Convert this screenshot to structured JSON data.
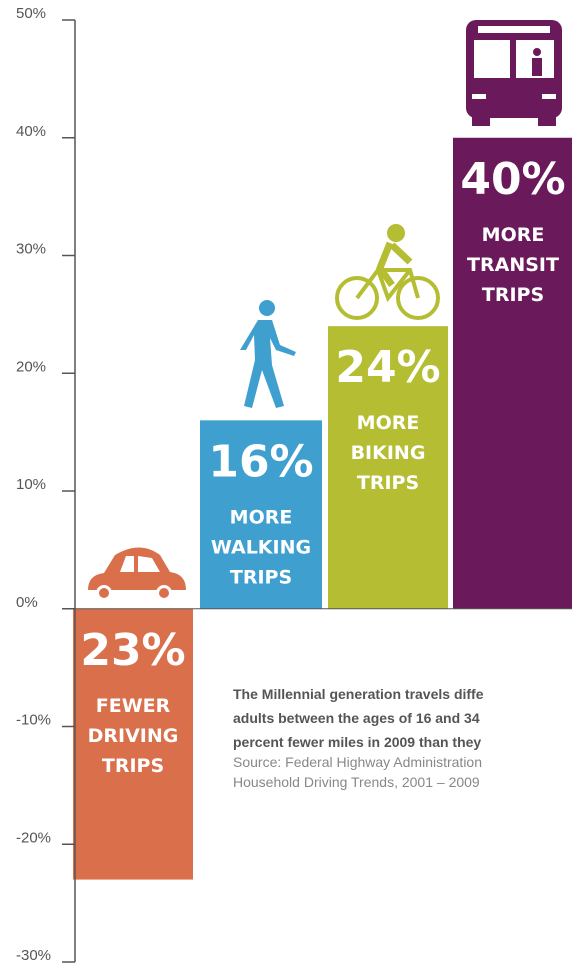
{
  "chart_data": {
    "type": "bar",
    "categories": [
      "Driving",
      "Walking",
      "Biking",
      "Transit"
    ],
    "values": [
      -23,
      16,
      24,
      40
    ],
    "value_labels": [
      "23%",
      "16%",
      "24%",
      "40%"
    ],
    "bar_texts": [
      [
        "FEWER",
        "DRIVING",
        "TRIPS"
      ],
      [
        "MORE",
        "WALKING",
        "TRIPS"
      ],
      [
        "MORE",
        "BIKING",
        "TRIPS"
      ],
      [
        "MORE",
        "TRANSIT",
        "TRIPS"
      ]
    ],
    "colors": [
      "#d9704b",
      "#3fa0d0",
      "#b5bd32",
      "#6a1a5a"
    ],
    "ylim": [
      -30,
      50
    ],
    "yticks": [
      {
        "value": -30,
        "label": "-30%"
      },
      {
        "value": -20,
        "label": "-20%"
      },
      {
        "value": -10,
        "label": "-10%"
      },
      {
        "value": 0,
        "label": "0%"
      },
      {
        "value": 10,
        "label": "10%"
      },
      {
        "value": 20,
        "label": "20%"
      },
      {
        "value": 30,
        "label": "30%"
      },
      {
        "value": 40,
        "label": "40%"
      },
      {
        "value": 50,
        "label": "50%"
      }
    ],
    "note": {
      "bold_lines": [
        "The Millennial generation travels diffe",
        "adults between the ages of 16 and 34",
        "percent fewer miles in 2009 than they"
      ],
      "source_lines": [
        "Source: Federal Highway Administration",
        "Household Driving Trends, 2001 – 2009"
      ]
    }
  }
}
